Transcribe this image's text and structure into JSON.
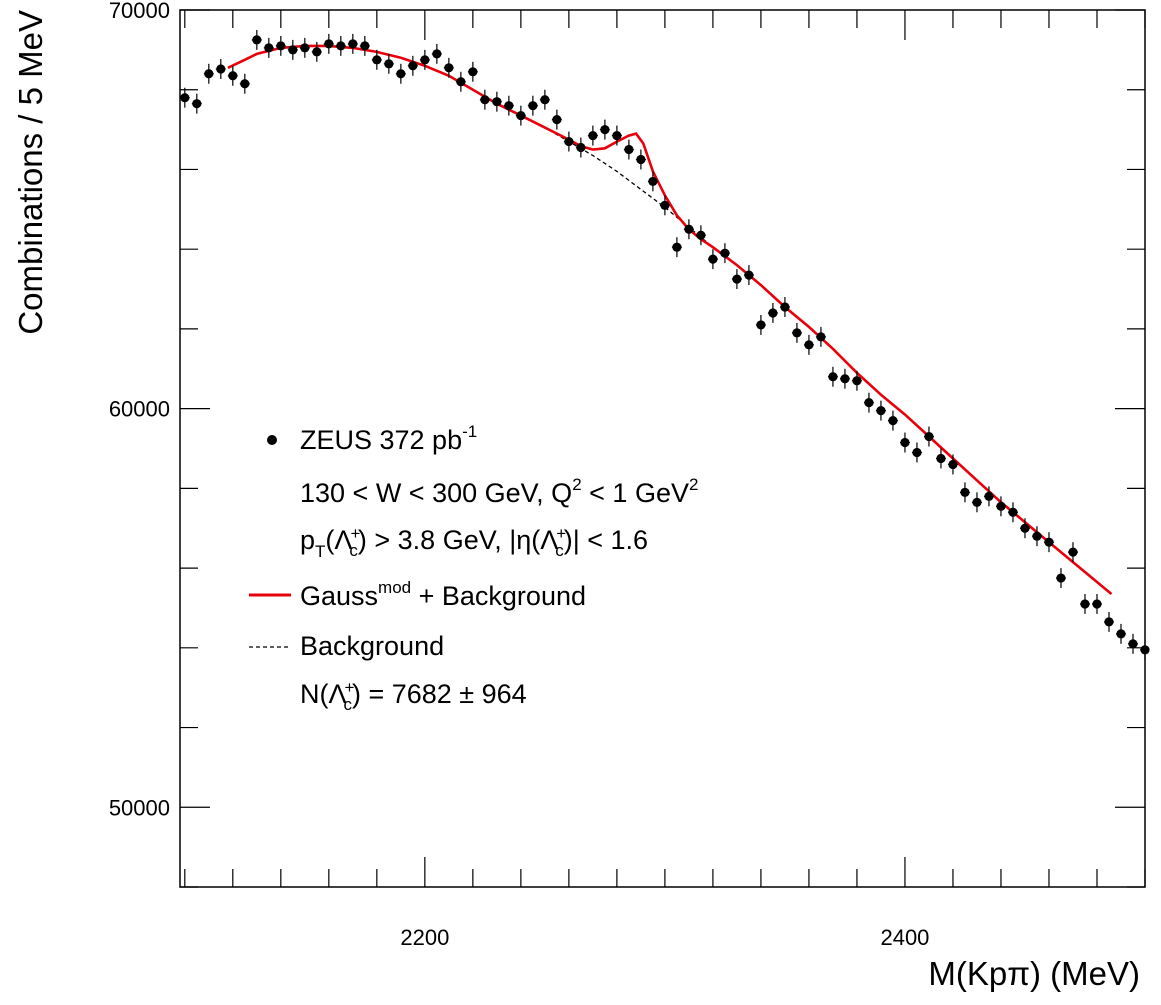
{
  "chart_data": {
    "type": "scatter",
    "xlabel": "M(Kpπ)  (MeV)",
    "ylabel": "Combinations  /  5 MeV",
    "xlim": [
      2098,
      2500
    ],
    "ylim": [
      48000,
      70000
    ],
    "x_ticks": [
      2200,
      2400
    ],
    "x_tick_labels": [
      "2200",
      "2400"
    ],
    "y_ticks": [
      50000,
      60000,
      70000
    ],
    "y_tick_labels": [
      "50000",
      "60000",
      "70000"
    ],
    "grid": false,
    "legend_position": "left-middle",
    "series": [
      {
        "name": "ZEUS 372 pb",
        "kind": "data-points",
        "color": "#000000",
        "error": 250,
        "x": [
          2100,
          2105,
          2110,
          2115,
          2120,
          2125,
          2130,
          2135,
          2140,
          2145,
          2150,
          2155,
          2160,
          2165,
          2170,
          2175,
          2180,
          2185,
          2190,
          2195,
          2200,
          2205,
          2210,
          2215,
          2220,
          2225,
          2230,
          2235,
          2240,
          2245,
          2250,
          2255,
          2260,
          2265,
          2270,
          2275,
          2280,
          2285,
          2290,
          2295,
          2300,
          2305,
          2310,
          2315,
          2320,
          2325,
          2330,
          2335,
          2340,
          2345,
          2350,
          2355,
          2360,
          2365,
          2370,
          2375,
          2380,
          2385,
          2390,
          2395,
          2400,
          2405,
          2410,
          2415,
          2420,
          2425,
          2430,
          2435,
          2440,
          2445,
          2450,
          2455,
          2460,
          2465,
          2470,
          2475,
          2480,
          2485,
          2490,
          2495,
          2500
        ],
        "y": [
          67800,
          67650,
          68400,
          68520,
          68350,
          68150,
          69250,
          69050,
          69100,
          69000,
          69050,
          68950,
          69150,
          69100,
          69150,
          69100,
          68750,
          68650,
          68400,
          68600,
          68750,
          68900,
          68550,
          68200,
          68450,
          67750,
          67700,
          67600,
          67350,
          67600,
          67750,
          67250,
          66700,
          66550,
          66850,
          67000,
          66850,
          66500,
          66250,
          65700,
          65100,
          64050,
          64500,
          64350,
          63750,
          63900,
          63250,
          63350,
          62100,
          62400,
          62550,
          61900,
          61600,
          61800,
          60800,
          60750,
          60700,
          60150,
          59950,
          59700,
          59150,
          58900,
          59300,
          58750,
          58600,
          57900,
          57650,
          57800,
          57550,
          57400,
          57000,
          56800,
          56650,
          55750,
          56400,
          55100,
          55100,
          54650,
          54350,
          54100,
          53950
        ]
      },
      {
        "name": "Gauss",
        "kind": "line",
        "color": "#e8000b",
        "x": [
          2118,
          2125,
          2130,
          2140,
          2150,
          2160,
          2170,
          2180,
          2190,
          2200,
          2210,
          2220,
          2230,
          2240,
          2250,
          2260,
          2265,
          2270,
          2275,
          2280,
          2285,
          2288,
          2291,
          2295,
          2300,
          2305,
          2310,
          2315,
          2320,
          2330,
          2340,
          2350,
          2360,
          2370,
          2380,
          2390,
          2400,
          2410,
          2420,
          2430,
          2440,
          2450,
          2460,
          2470,
          2480,
          2486
        ],
        "y": [
          68550,
          68750,
          68900,
          69050,
          69100,
          69100,
          69050,
          68950,
          68800,
          68600,
          68350,
          68000,
          67650,
          67350,
          67050,
          66750,
          66580,
          66500,
          66530,
          66700,
          66850,
          66900,
          66650,
          65950,
          65350,
          64850,
          64500,
          64250,
          64050,
          63600,
          63100,
          62550,
          62050,
          61500,
          60900,
          60350,
          59850,
          59300,
          58750,
          58200,
          57650,
          57150,
          56650,
          56150,
          55650,
          55350
        ]
      },
      {
        "name": "Background",
        "kind": "dashed-line",
        "color": "#000000",
        "x": [
          2118,
          2125,
          2130,
          2140,
          2150,
          2160,
          2170,
          2180,
          2190,
          2200,
          2210,
          2220,
          2230,
          2240,
          2250,
          2260,
          2270,
          2280,
          2290,
          2300,
          2310,
          2320,
          2330,
          2340,
          2350,
          2360,
          2370,
          2380,
          2390,
          2400,
          2410,
          2420,
          2430,
          2440,
          2450,
          2460,
          2470,
          2480,
          2486
        ],
        "y": [
          68550,
          68750,
          68900,
          69050,
          69100,
          69100,
          69050,
          68950,
          68800,
          68600,
          68350,
          68000,
          67650,
          67350,
          67050,
          66700,
          66350,
          65950,
          65500,
          65050,
          64550,
          64050,
          63600,
          63100,
          62550,
          62050,
          61500,
          60900,
          60350,
          59850,
          59300,
          58750,
          58200,
          57650,
          57150,
          56650,
          56150,
          55650,
          55350
        ]
      }
    ]
  },
  "legend": {
    "data_label": "ZEUS 372 pb",
    "data_sup": "-1",
    "line2_text": "130 < W < 300 GeV, Q",
    "line2_sup1": "2",
    "line2_mid": " < 1 GeV",
    "line2_sup2": "2",
    "line3_p": "p",
    "line3_T": "T",
    "line3_open": "(Λ",
    "line3_c": "c",
    "line3_plus": "+",
    "line3_mid": ") > 3.8 GeV, |η(Λ",
    "line3_c2": "c",
    "line3_plus2": "+",
    "line3_end": ")| < 1.6",
    "fit_label": "Gauss",
    "fit_sup": "mod",
    "fit_rest": " + Background",
    "bg_label": "Background",
    "yield_open": "N(Λ",
    "yield_c": "c",
    "yield_plus": "+",
    "yield_rest": ") = 7682 ± 964"
  }
}
